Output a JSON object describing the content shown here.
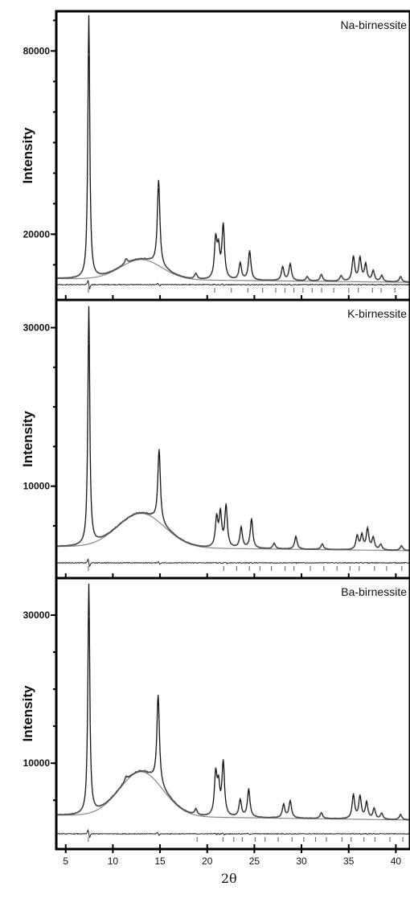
{
  "chart_data": [
    {
      "type": "line",
      "title": "Na-birnessite",
      "ylabel": "Intensity",
      "xlabel": "",
      "xlim": [
        4,
        41.5
      ],
      "ylim": [
        -1500,
        93000
      ],
      "ytick_values": [
        20000,
        80000
      ],
      "ytick_labels": [
        "20000",
        "80000"
      ],
      "ytick_minor_step": 10000,
      "background": 5500,
      "hump": {
        "center": 13,
        "width": 2.2,
        "height": 6500
      },
      "peaks": [
        {
          "x": 7.45,
          "y": 86000
        },
        {
          "x": 11.4,
          "y": 1600
        },
        {
          "x": 14.85,
          "y": 28000
        },
        {
          "x": 18.8,
          "y": 1800
        },
        {
          "x": 20.9,
          "y": 12500
        },
        {
          "x": 21.2,
          "y": 9000
        },
        {
          "x": 21.7,
          "y": 17500
        },
        {
          "x": 23.5,
          "y": 5500
        },
        {
          "x": 24.5,
          "y": 9500
        },
        {
          "x": 28.0,
          "y": 4500
        },
        {
          "x": 28.8,
          "y": 5500
        },
        {
          "x": 30.6,
          "y": 1400
        },
        {
          "x": 32.1,
          "y": 2200
        },
        {
          "x": 34.2,
          "y": 1800
        },
        {
          "x": 35.5,
          "y": 8000
        },
        {
          "x": 36.2,
          "y": 7500
        },
        {
          "x": 36.8,
          "y": 5500
        },
        {
          "x": 37.6,
          "y": 3500
        },
        {
          "x": 38.5,
          "y": 2000
        },
        {
          "x": 40.5,
          "y": 1800
        }
      ],
      "series": [
        {
          "name": "",
          "role": "observed",
          "color": "#555555"
        },
        {
          "name": "",
          "role": "calculated",
          "color": "#111111"
        },
        {
          "name": "",
          "role": "background",
          "color": "#888888"
        },
        {
          "name": "",
          "role": "difference",
          "color": "#222222"
        }
      ]
    },
    {
      "type": "line",
      "title": "K-birnessite",
      "ylabel": "Intensity",
      "xlabel": "",
      "xlim": [
        4,
        41.5
      ],
      "ylim": [
        -1600,
        33500
      ],
      "ytick_values": [
        10000,
        30000
      ],
      "ytick_labels": [
        "10000",
        "30000"
      ],
      "ytick_minor_step": 5000,
      "background": 2400,
      "hump": {
        "center": 13,
        "width": 2.5,
        "height": 4300
      },
      "peaks": [
        {
          "x": 7.45,
          "y": 30000
        },
        {
          "x": 14.9,
          "y": 9200
        },
        {
          "x": 21.0,
          "y": 3600
        },
        {
          "x": 21.4,
          "y": 4200
        },
        {
          "x": 22.0,
          "y": 5200
        },
        {
          "x": 23.6,
          "y": 2600
        },
        {
          "x": 24.7,
          "y": 3700
        },
        {
          "x": 27.1,
          "y": 700
        },
        {
          "x": 29.4,
          "y": 1600
        },
        {
          "x": 32.2,
          "y": 700
        },
        {
          "x": 35.9,
          "y": 1700
        },
        {
          "x": 36.4,
          "y": 1800
        },
        {
          "x": 37.0,
          "y": 2600
        },
        {
          "x": 37.6,
          "y": 1500
        },
        {
          "x": 38.4,
          "y": 700
        },
        {
          "x": 40.6,
          "y": 600
        }
      ],
      "series": [
        {
          "name": "",
          "role": "observed",
          "color": "#555555"
        },
        {
          "name": "",
          "role": "calculated",
          "color": "#111111"
        },
        {
          "name": "",
          "role": "background",
          "color": "#888888"
        },
        {
          "name": "",
          "role": "difference",
          "color": "#222222"
        }
      ]
    },
    {
      "type": "line",
      "title": "Ba-birnessite",
      "ylabel": "Intensity",
      "xlabel": "2θ",
      "xlim": [
        4,
        41.5
      ],
      "ylim": [
        -1600,
        35000
      ],
      "ytick_values": [
        10000,
        30000
      ],
      "ytick_labels": [
        "10000",
        "30000"
      ],
      "ytick_minor_step": 5000,
      "xtick_values": [
        5,
        10,
        15,
        20,
        25,
        30,
        35,
        40
      ],
      "xtick_labels": [
        "5",
        "10",
        "15",
        "20",
        "25",
        "30",
        "35",
        "40"
      ],
      "background": 3000,
      "hump": {
        "center": 13,
        "width": 2.3,
        "height": 6000
      },
      "peaks": [
        {
          "x": 7.45,
          "y": 31000
        },
        {
          "x": 11.4,
          "y": 600
        },
        {
          "x": 14.8,
          "y": 12000
        },
        {
          "x": 18.8,
          "y": 800
        },
        {
          "x": 20.9,
          "y": 5500
        },
        {
          "x": 21.2,
          "y": 3800
        },
        {
          "x": 21.7,
          "y": 7200
        },
        {
          "x": 23.5,
          "y": 2300
        },
        {
          "x": 24.4,
          "y": 3800
        },
        {
          "x": 28.1,
          "y": 1800
        },
        {
          "x": 28.8,
          "y": 2300
        },
        {
          "x": 32.1,
          "y": 800
        },
        {
          "x": 35.5,
          "y": 3200
        },
        {
          "x": 36.2,
          "y": 3000
        },
        {
          "x": 36.9,
          "y": 2200
        },
        {
          "x": 37.7,
          "y": 1400
        },
        {
          "x": 38.5,
          "y": 800
        },
        {
          "x": 40.5,
          "y": 700
        }
      ],
      "series": [
        {
          "name": "",
          "role": "observed",
          "color": "#555555"
        },
        {
          "name": "",
          "role": "calculated",
          "color": "#111111"
        },
        {
          "name": "",
          "role": "background",
          "color": "#888888"
        },
        {
          "name": "",
          "role": "difference",
          "color": "#222222"
        }
      ]
    }
  ]
}
